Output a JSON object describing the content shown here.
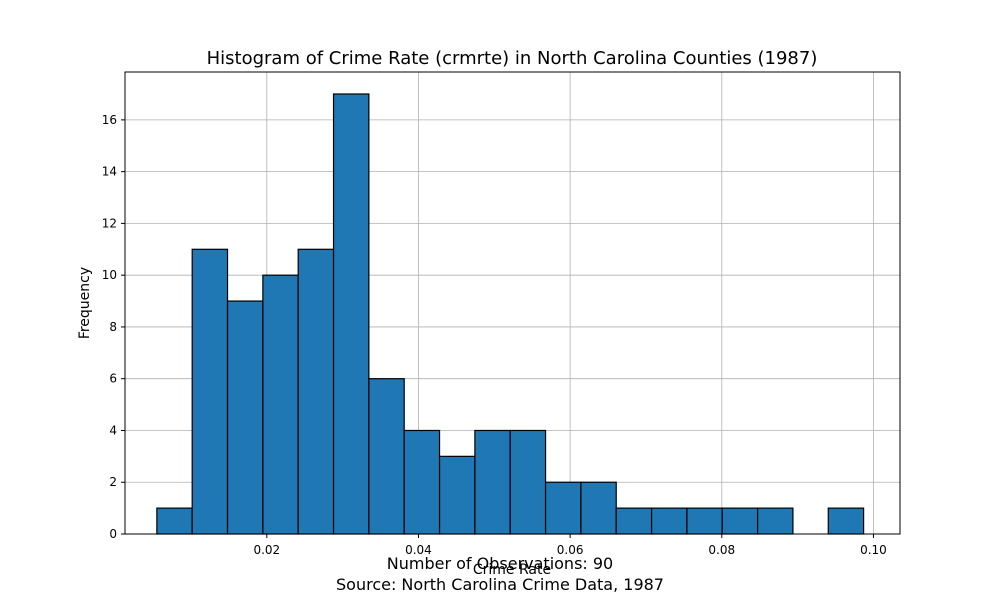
{
  "chart_data": {
    "type": "bar",
    "title": "Histogram of Crime Rate (crmrte) in North Carolina Counties (1987)",
    "xlabel": "Crime Rate",
    "ylabel": "Frequency",
    "xlim": [
      0.0013,
      0.1035
    ],
    "ylim": [
      0,
      17.85
    ],
    "x_ticks": [
      0.02,
      0.04,
      0.06,
      0.08,
      0.1
    ],
    "x_tick_labels": [
      "0.02",
      "0.04",
      "0.06",
      "0.08",
      "0.10"
    ],
    "y_ticks": [
      0,
      2,
      4,
      6,
      8,
      10,
      12,
      14,
      16
    ],
    "y_tick_labels": [
      "0",
      "2",
      "4",
      "6",
      "8",
      "10",
      "12",
      "14",
      "16"
    ],
    "grid": true,
    "bar_color": "#1f77b4",
    "edge_color": "#000000",
    "bins": {
      "start": 0.0055,
      "width": 0.00466,
      "counts": [
        1,
        11,
        9,
        10,
        11,
        17,
        6,
        4,
        3,
        4,
        4,
        2,
        2,
        1,
        1,
        1,
        1,
        1,
        0,
        1
      ]
    }
  },
  "footer": {
    "observations": "Number of Observations: 90",
    "source": "Source: North Carolina Crime Data, 1987"
  }
}
